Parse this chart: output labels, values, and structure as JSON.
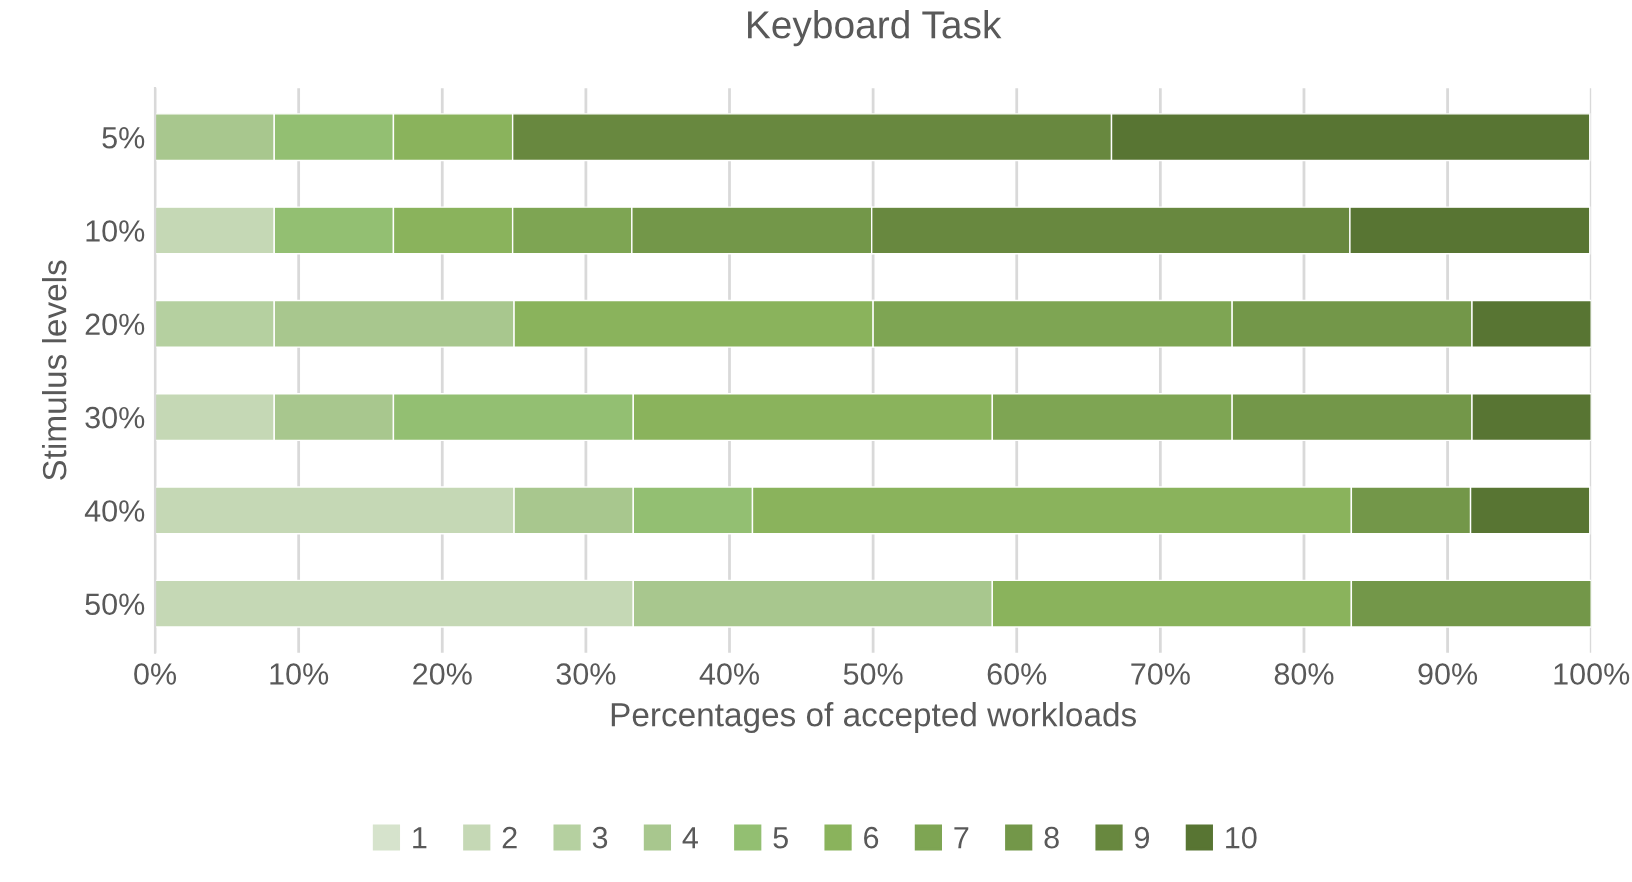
{
  "chart_data": {
    "type": "bar",
    "orientation": "horizontal",
    "stacked": true,
    "title": "Keyboard Task",
    "xlabel": "Percentages of accepted workloads",
    "ylabel": "Stimulus levels",
    "categories": [
      "5%",
      "10%",
      "20%",
      "30%",
      "40%",
      "50%"
    ],
    "xlim": [
      0,
      100
    ],
    "xticks": [
      {
        "value": 0,
        "label": "0%"
      },
      {
        "value": 10,
        "label": "10%"
      },
      {
        "value": 20,
        "label": "20%"
      },
      {
        "value": 30,
        "label": "30%"
      },
      {
        "value": 40,
        "label": "40%"
      },
      {
        "value": 50,
        "label": "50%"
      },
      {
        "value": 60,
        "label": "60%"
      },
      {
        "value": 70,
        "label": "70%"
      },
      {
        "value": 80,
        "label": "80%"
      },
      {
        "value": 90,
        "label": "90%"
      },
      {
        "value": 100,
        "label": "100%"
      }
    ],
    "grid": "x",
    "legend": "bottom",
    "series": [
      {
        "name": "1",
        "color": "#d6e3cc",
        "values": [
          null,
          null,
          null,
          null,
          null,
          null
        ]
      },
      {
        "name": "2",
        "color": "#c5d8b5",
        "values": [
          null,
          8.3,
          null,
          8.3,
          25,
          33.3
        ]
      },
      {
        "name": "3",
        "color": "#b5d0a0",
        "values": [
          null,
          null,
          8.3,
          null,
          null,
          null
        ]
      },
      {
        "name": "4",
        "color": "#a8c78e",
        "values": [
          8.3,
          null,
          16.7,
          8.3,
          8.3,
          25
        ]
      },
      {
        "name": "5",
        "color": "#93bf72",
        "values": [
          8.3,
          8.3,
          null,
          16.7,
          8.3,
          null
        ]
      },
      {
        "name": "6",
        "color": "#8ab35c",
        "values": [
          8.3,
          8.3,
          25,
          25,
          41.7,
          25
        ]
      },
      {
        "name": "7",
        "color": "#7ea553",
        "values": [
          null,
          8.3,
          25,
          16.7,
          null,
          null
        ]
      },
      {
        "name": "8",
        "color": "#739749",
        "values": [
          null,
          16.7,
          16.7,
          16.7,
          8.3,
          16.7
        ]
      },
      {
        "name": "9",
        "color": "#68883f",
        "values": [
          41.7,
          33.3,
          null,
          null,
          null,
          null
        ]
      },
      {
        "name": "10",
        "color": "#587533",
        "values": [
          33.3,
          16.7,
          8.3,
          8.3,
          8.3,
          null
        ]
      }
    ]
  }
}
